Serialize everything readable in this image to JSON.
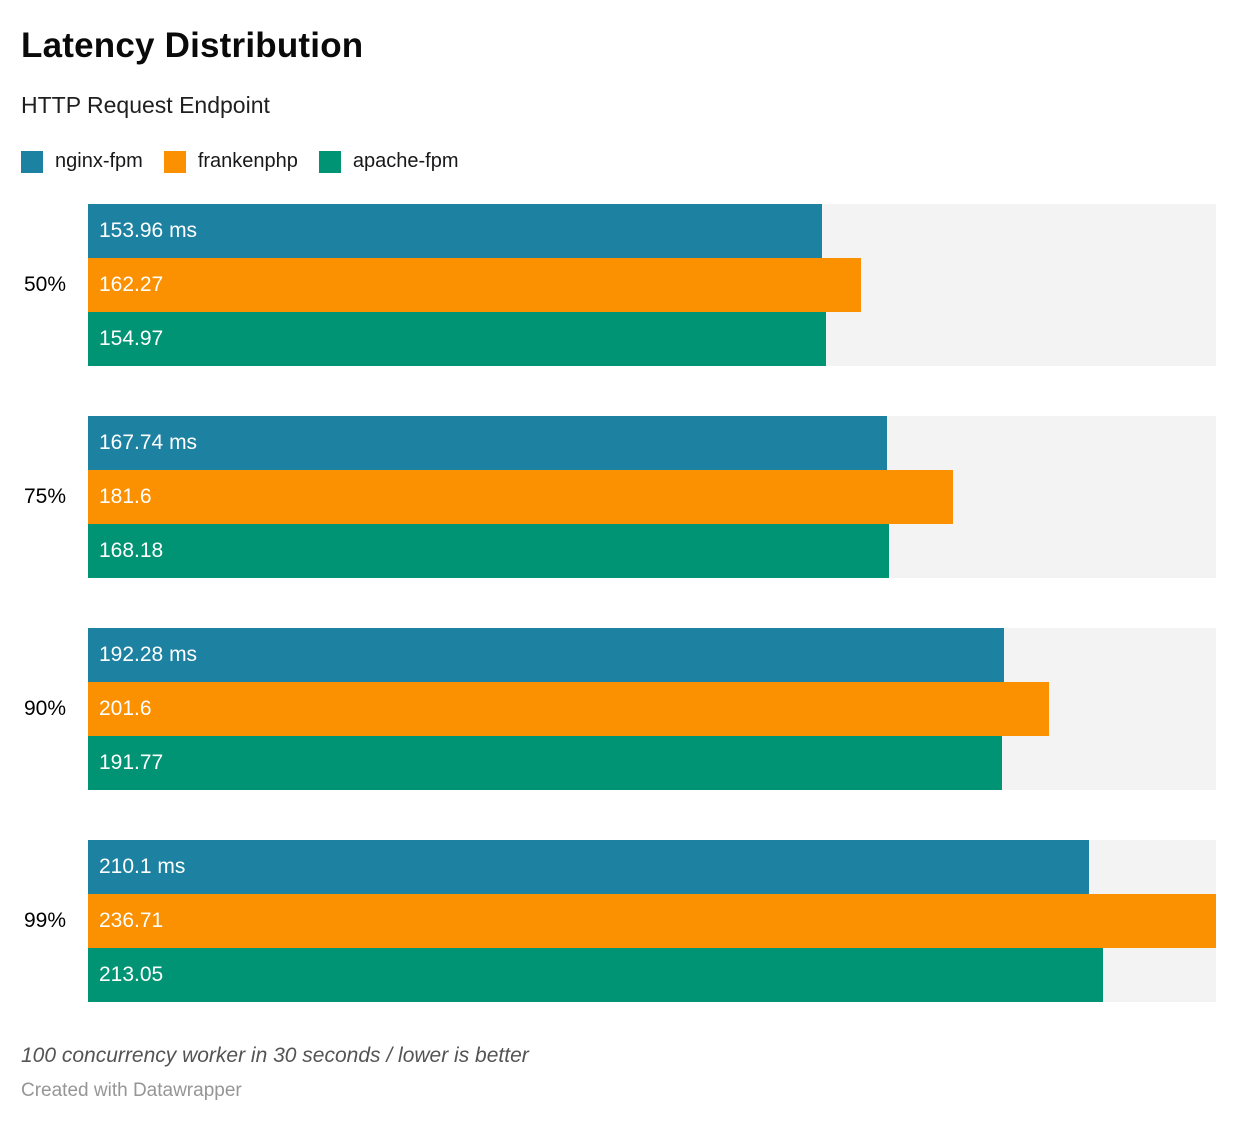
{
  "header": {
    "title": "Latency Distribution",
    "subtitle": "HTTP Request Endpoint"
  },
  "chart_data": {
    "type": "bar",
    "orientation": "horizontal",
    "title": "Latency Distribution",
    "subtitle": "HTTP Request Endpoint",
    "unit": "ms",
    "categories": [
      "50%",
      "75%",
      "90%",
      "99%"
    ],
    "series": [
      {
        "name": "nginx-fpm",
        "color": "#1d81a2",
        "values": [
          153.96,
          167.74,
          192.28,
          210.1
        ],
        "labels": [
          "153.96 ms",
          "167.74 ms",
          "192.28 ms",
          "210.1 ms"
        ]
      },
      {
        "name": "frankenphp",
        "color": "#fb9000",
        "values": [
          162.27,
          181.6,
          201.6,
          236.71
        ],
        "labels": [
          "162.27",
          "181.6",
          "201.6",
          "236.71"
        ]
      },
      {
        "name": "apache-fpm",
        "color": "#009474",
        "values": [
          154.97,
          168.18,
          191.77,
          213.05
        ],
        "labels": [
          "154.97",
          "168.18",
          "191.77",
          "213.05"
        ]
      }
    ],
    "xlim": [
      0,
      236.71
    ],
    "track_color": "#f3f3f3",
    "grid": false,
    "legend_position": "top"
  },
  "footer": {
    "note": "100 concurrency worker in 30 seconds / lower is better",
    "attribution": "Created with Datawrapper"
  }
}
